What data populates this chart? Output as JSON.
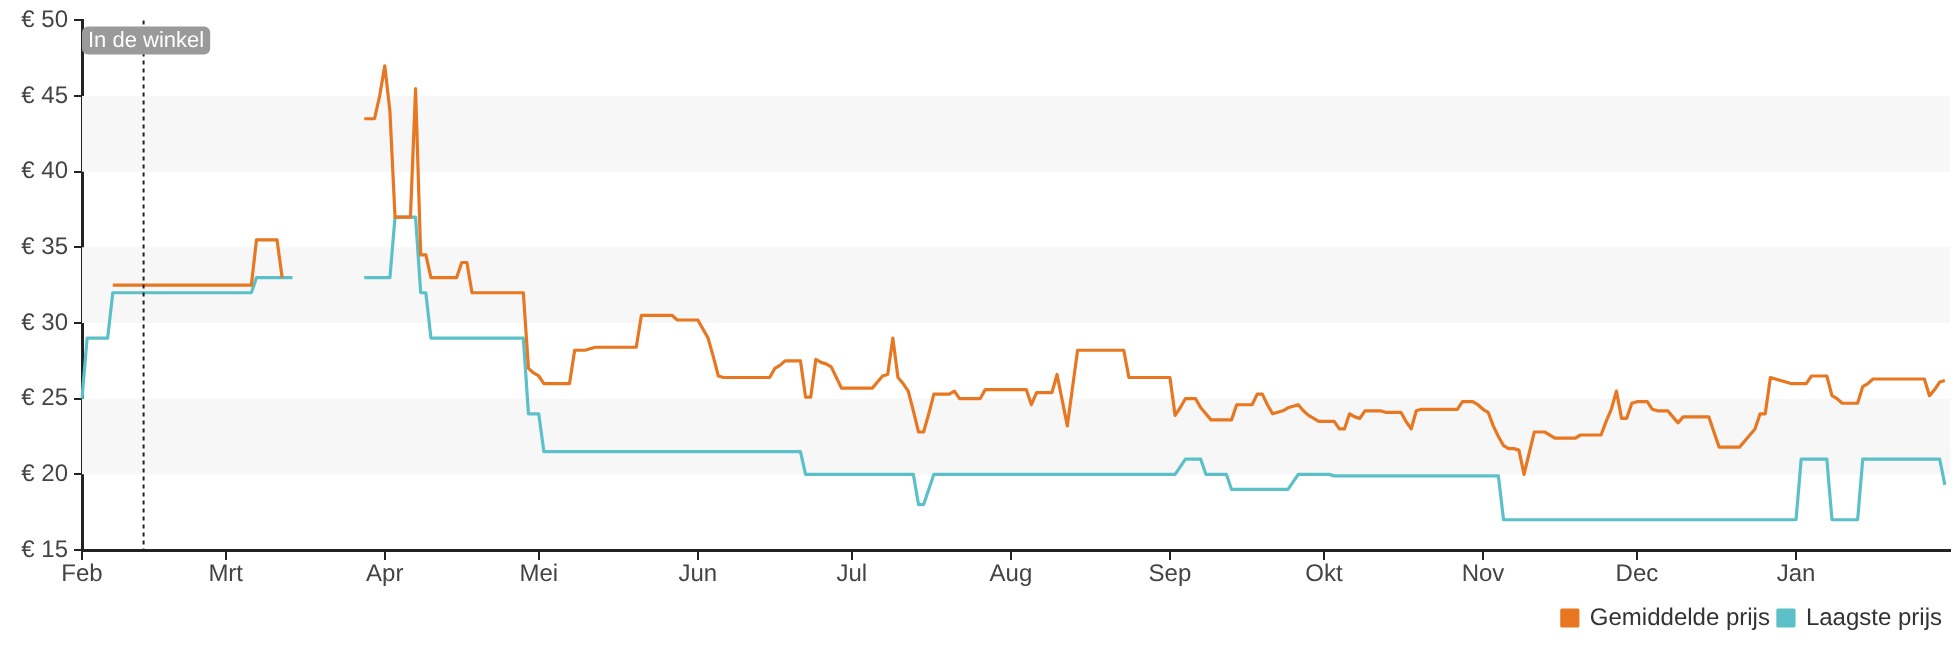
{
  "chart_data": {
    "type": "line",
    "categories": [
      "Feb",
      null,
      null,
      null,
      null,
      null,
      null,
      null,
      null,
      null,
      null,
      null,
      null,
      null,
      null,
      null,
      null,
      null,
      null,
      null,
      null,
      null,
      null,
      null,
      null,
      null,
      null,
      null,
      "Mrt",
      null,
      null,
      null,
      null,
      null,
      null,
      null,
      null,
      null,
      null,
      null,
      null,
      null,
      null,
      null,
      null,
      null,
      null,
      null,
      null,
      null,
      null,
      null,
      null,
      null,
      null,
      null,
      null,
      null,
      null,
      "Apr",
      null,
      null,
      null,
      null,
      null,
      null,
      null,
      null,
      null,
      null,
      null,
      null,
      null,
      null,
      null,
      null,
      null,
      null,
      null,
      null,
      null,
      null,
      null,
      null,
      null,
      null,
      null,
      null,
      null,
      "Mei",
      null,
      null,
      null,
      null,
      null,
      null,
      null,
      null,
      null,
      null,
      null,
      null,
      null,
      null,
      null,
      null,
      null,
      null,
      null,
      null,
      null,
      null,
      null,
      null,
      null,
      null,
      null,
      null,
      null,
      null,
      "Jun",
      null,
      null,
      null,
      null,
      null,
      null,
      null,
      null,
      null,
      null,
      null,
      null,
      null,
      null,
      null,
      null,
      null,
      null,
      null,
      null,
      null,
      null,
      null,
      null,
      null,
      null,
      null,
      null,
      null,
      "Jul",
      null,
      null,
      null,
      null,
      null,
      null,
      null,
      null,
      null,
      null,
      null,
      null,
      null,
      null,
      null,
      null,
      null,
      null,
      null,
      null,
      null,
      null,
      null,
      null,
      null,
      null,
      null,
      null,
      null,
      null,
      "Aug",
      null,
      null,
      null,
      null,
      null,
      null,
      null,
      null,
      null,
      null,
      null,
      null,
      null,
      null,
      null,
      null,
      null,
      null,
      null,
      null,
      null,
      null,
      null,
      null,
      null,
      null,
      null,
      null,
      null,
      null,
      "Sep",
      null,
      null,
      null,
      null,
      null,
      null,
      null,
      null,
      null,
      null,
      null,
      null,
      null,
      null,
      null,
      null,
      null,
      null,
      null,
      null,
      null,
      null,
      null,
      null,
      null,
      null,
      null,
      null,
      null,
      "Okt",
      null,
      null,
      null,
      null,
      null,
      null,
      null,
      null,
      null,
      null,
      null,
      null,
      null,
      null,
      null,
      null,
      null,
      null,
      null,
      null,
      null,
      null,
      null,
      null,
      null,
      null,
      null,
      null,
      null,
      null,
      "Nov",
      null,
      null,
      null,
      null,
      null,
      null,
      null,
      null,
      null,
      null,
      null,
      null,
      null,
      null,
      null,
      null,
      null,
      null,
      null,
      null,
      null,
      null,
      null,
      null,
      null,
      null,
      null,
      null,
      null,
      "Dec",
      null,
      null,
      null,
      null,
      null,
      null,
      null,
      null,
      null,
      null,
      null,
      null,
      null,
      null,
      null,
      null,
      null,
      null,
      null,
      null,
      null,
      null,
      null,
      null,
      null,
      null,
      null,
      null,
      null,
      null,
      "Jan",
      null,
      null,
      null,
      null,
      null,
      null,
      null,
      null,
      null,
      null,
      null,
      null,
      null,
      null,
      null,
      null,
      null,
      null,
      null,
      null,
      null,
      null,
      null,
      null,
      null,
      null,
      null,
      null,
      null,
      null
    ],
    "series": [
      {
        "name": "Gemiddelde prijs",
        "color": "#e87722",
        "values": [
          null,
          null,
          null,
          null,
          null,
          null,
          32.5,
          32.5,
          32.5,
          32.5,
          32.5,
          32.5,
          32.5,
          32.5,
          32.5,
          32.5,
          32.5,
          32.5,
          32.5,
          32.5,
          32.5,
          32.5,
          32.5,
          32.5,
          32.5,
          32.5,
          32.5,
          32.5,
          32.5,
          32.5,
          32.5,
          32.5,
          32.5,
          32.5,
          35.5,
          35.5,
          35.5,
          35.5,
          35.5,
          33,
          null,
          null,
          null,
          null,
          null,
          null,
          null,
          null,
          null,
          null,
          null,
          null,
          null,
          null,
          null,
          43.5,
          43.5,
          43.5,
          45,
          47,
          44,
          37,
          37,
          37,
          37,
          45.5,
          34.5,
          34.5,
          33,
          33,
          33,
          33,
          33,
          33,
          34,
          34,
          32,
          32,
          32,
          32,
          32,
          32,
          32,
          32,
          32,
          32,
          32,
          27,
          26.7,
          26.5,
          26,
          26,
          26,
          26,
          26,
          26,
          28.2,
          28.2,
          28.2,
          28.3,
          28.4,
          28.4,
          28.4,
          28.4,
          28.4,
          28.4,
          28.4,
          28.4,
          28.4,
          30.5,
          30.5,
          30.5,
          30.5,
          30.5,
          30.5,
          30.5,
          30.2,
          30.2,
          30.2,
          30.2,
          30.2,
          29.6,
          29,
          27.8,
          26.5,
          26.4,
          26.4,
          26.4,
          26.4,
          26.4,
          26.4,
          26.4,
          26.4,
          26.4,
          26.4,
          27,
          27.2,
          27.5,
          27.5,
          27.5,
          27.5,
          25.1,
          25.1,
          27.6,
          27.4,
          27.3,
          27.1,
          26.4,
          25.7,
          25.7,
          25.7,
          25.7,
          25.7,
          25.7,
          25.7,
          26.1,
          26.5,
          26.6,
          29,
          26.4,
          26,
          25.5,
          24.2,
          22.8,
          22.8,
          24,
          25.3,
          25.3,
          25.3,
          25.3,
          25.5,
          25,
          25,
          25,
          25,
          25,
          25.6,
          25.6,
          25.6,
          25.6,
          25.6,
          25.6,
          25.6,
          25.6,
          25.6,
          24.6,
          25.4,
          25.4,
          25.4,
          25.4,
          26.6,
          24.9,
          23.2,
          25.7,
          28.2,
          28.2,
          28.2,
          28.2,
          28.2,
          28.2,
          28.2,
          28.2,
          28.2,
          28.2,
          26.4,
          26.4,
          26.4,
          26.4,
          26.4,
          26.4,
          26.4,
          26.4,
          26.4,
          23.9,
          24.4,
          25,
          25,
          25,
          24.4,
          24,
          23.6,
          23.6,
          23.6,
          23.6,
          23.6,
          24.6,
          24.6,
          24.6,
          24.6,
          25.3,
          25.3,
          24.6,
          24,
          24.1,
          24.2,
          24.4,
          24.5,
          24.6,
          24.2,
          23.9,
          23.7,
          23.5,
          23.5,
          23.5,
          23.5,
          23,
          23,
          24,
          23.8,
          23.7,
          24.2,
          24.2,
          24.2,
          24.2,
          24.1,
          24.1,
          24.1,
          24.1,
          23.5,
          23,
          24.2,
          24.3,
          24.3,
          24.3,
          24.3,
          24.3,
          24.3,
          24.3,
          24.3,
          24.8,
          24.8,
          24.8,
          24.6,
          24.3,
          24.1,
          23.2,
          22.5,
          21.9,
          21.7,
          21.7,
          21.6,
          20,
          21.4,
          22.8,
          22.8,
          22.8,
          22.6,
          22.4,
          22.4,
          22.4,
          22.4,
          22.4,
          22.6,
          22.6,
          22.6,
          22.6,
          22.6,
          23.5,
          24.3,
          25.5,
          23.7,
          23.7,
          24.7,
          24.8,
          24.8,
          24.8,
          24.3,
          24.2,
          24.2,
          24.2,
          23.8,
          23.4,
          23.8,
          23.8,
          23.8,
          23.8,
          23.8,
          23.8,
          22.8,
          21.8,
          21.8,
          21.8,
          21.8,
          21.8,
          22.2,
          22.6,
          23,
          24,
          24,
          26.4,
          26.3,
          26.2,
          26.1,
          26,
          26,
          26,
          26,
          26.5,
          26.5,
          26.5,
          26.5,
          25.2,
          25,
          24.7,
          24.7,
          24.7,
          24.7,
          25.8,
          26,
          26.3,
          26.3,
          26.3,
          26.3,
          26.3,
          26.3,
          26.3,
          26.3,
          26.3,
          26.3,
          26.3,
          25.2,
          25.6,
          26.1,
          26.2,
          null
        ]
      },
      {
        "name": "Laagste prijs",
        "color": "#5bc0c8",
        "values": [
          25,
          29,
          29,
          29,
          29,
          29,
          32,
          32,
          32,
          32,
          32,
          32,
          32,
          32,
          32,
          32,
          32,
          32,
          32,
          32,
          32,
          32,
          32,
          32,
          32,
          32,
          32,
          32,
          32,
          32,
          32,
          32,
          32,
          32,
          33,
          33,
          33,
          33,
          33,
          33,
          33,
          33,
          null,
          null,
          null,
          null,
          null,
          null,
          null,
          null,
          null,
          null,
          null,
          null,
          null,
          33,
          33,
          33,
          33,
          33,
          33,
          37,
          37,
          37,
          37,
          37,
          32,
          32,
          29,
          29,
          29,
          29,
          29,
          29,
          29,
          29,
          29,
          29,
          29,
          29,
          29,
          29,
          29,
          29,
          29,
          29,
          29,
          24,
          24,
          24,
          21.5,
          21.5,
          21.5,
          21.5,
          21.5,
          21.5,
          21.5,
          21.5,
          21.5,
          21.5,
          21.5,
          21.5,
          21.5,
          21.5,
          21.5,
          21.5,
          21.5,
          21.5,
          21.5,
          21.5,
          21.5,
          21.5,
          21.5,
          21.5,
          21.5,
          21.5,
          21.5,
          21.5,
          21.5,
          21.5,
          21.5,
          21.5,
          21.5,
          21.5,
          21.5,
          21.5,
          21.5,
          21.5,
          21.5,
          21.5,
          21.5,
          21.5,
          21.5,
          21.5,
          21.5,
          21.5,
          21.5,
          21.5,
          21.5,
          21.5,
          21.5,
          20,
          20,
          20,
          20,
          20,
          20,
          20,
          20,
          20,
          20,
          20,
          20,
          20,
          20,
          20,
          20,
          20,
          20,
          20,
          20,
          20,
          20,
          18,
          18,
          19,
          20,
          20,
          20,
          20,
          20,
          20,
          20,
          20,
          20,
          20,
          20,
          20,
          20,
          20,
          20,
          20,
          20,
          20,
          20,
          20,
          20,
          20,
          20,
          20,
          20,
          20,
          20,
          20,
          20,
          20,
          20,
          20,
          20,
          20,
          20,
          20,
          20,
          20,
          20,
          20,
          20,
          20,
          20,
          20,
          20,
          20,
          20,
          20,
          20.5,
          21,
          21,
          21,
          21,
          20,
          20,
          20,
          20,
          20,
          19,
          19,
          19,
          19,
          19,
          19,
          19,
          19,
          19,
          19,
          19,
          19,
          19.5,
          20,
          20,
          20,
          20,
          20,
          20,
          20,
          19.9,
          19.9,
          19.9,
          19.9,
          19.9,
          19.9,
          19.9,
          19.9,
          19.9,
          19.9,
          19.9,
          19.9,
          19.9,
          19.9,
          19.9,
          19.9,
          19.9,
          19.9,
          19.9,
          19.9,
          19.9,
          19.9,
          19.9,
          19.9,
          19.9,
          19.9,
          19.9,
          19.9,
          19.9,
          19.9,
          19.9,
          19.9,
          19.9,
          17,
          17,
          17,
          17,
          17,
          17,
          17,
          17,
          17,
          17,
          17,
          17,
          17,
          17,
          17,
          17,
          17,
          17,
          17,
          17,
          17,
          17,
          17,
          17,
          17,
          17,
          17,
          17,
          17,
          17,
          17,
          17,
          17,
          17,
          17,
          17,
          17,
          17,
          17,
          17,
          17,
          17,
          17,
          17,
          17,
          17,
          17,
          17,
          17,
          17,
          17,
          17,
          17,
          17,
          17,
          17,
          17,
          17,
          21,
          21,
          21,
          21,
          21,
          21,
          17,
          17,
          17,
          17,
          17,
          17,
          21,
          21,
          21,
          21,
          21,
          21,
          21,
          21,
          21,
          21,
          21,
          21,
          21,
          21,
          21,
          21,
          19.3,
          null
        ]
      }
    ],
    "ylim": [
      15,
      50
    ],
    "yticks": [
      {
        "value": 15,
        "label": "€ 15"
      },
      {
        "value": 20,
        "label": "€ 20"
      },
      {
        "value": 25,
        "label": "€ 25"
      },
      {
        "value": 30,
        "label": "€ 30"
      },
      {
        "value": 35,
        "label": "€ 35"
      },
      {
        "value": 40,
        "label": "€ 40"
      },
      {
        "value": 45,
        "label": "€ 45"
      },
      {
        "value": 50,
        "label": "€ 50"
      }
    ],
    "annotations": [
      "In de winkel"
    ],
    "bands": [
      {
        "axis": "y",
        "from": 20,
        "to": 25,
        "color": "#f7f7f7"
      },
      {
        "axis": "y",
        "from": 30,
        "to": 35,
        "color": "#f7f7f7"
      },
      {
        "axis": "y",
        "from": 40,
        "to": 45,
        "color": "#f7f7f7"
      }
    ],
    "legend": "bottom right",
    "marker": "none",
    "line_style": "solid"
  }
}
